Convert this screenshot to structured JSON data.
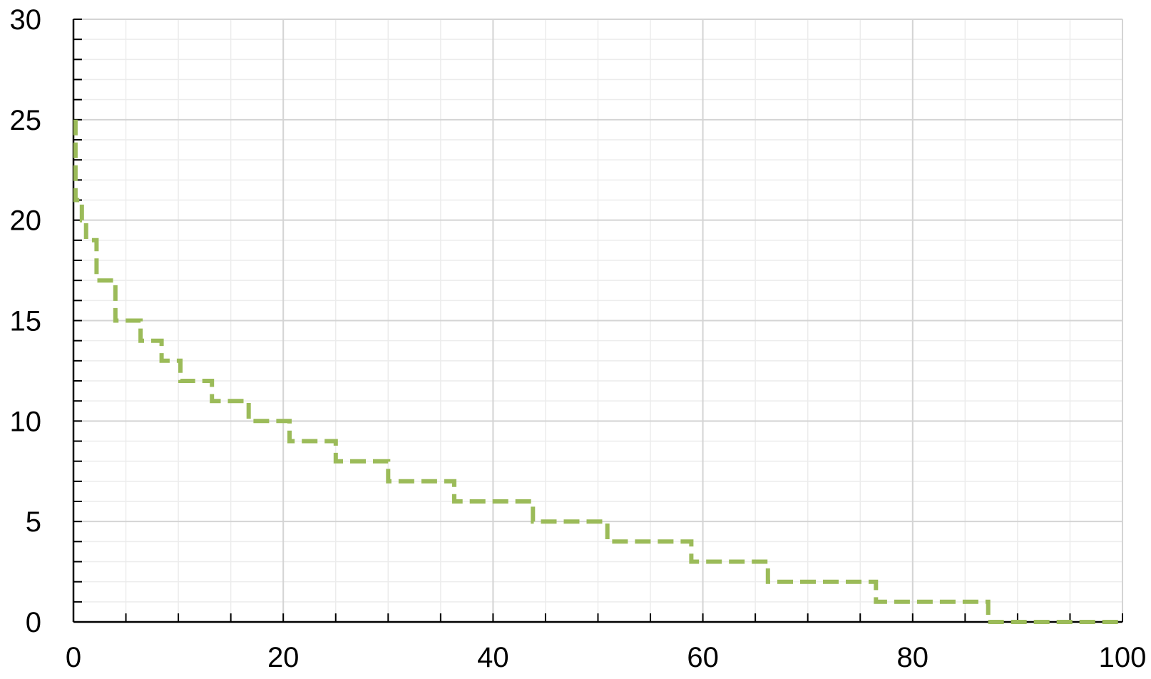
{
  "chart_data": {
    "type": "line",
    "title": "",
    "xlabel": "",
    "ylabel": "",
    "xlim": [
      0,
      100
    ],
    "ylim": [
      0,
      30
    ],
    "x_ticks": [
      0,
      20,
      40,
      60,
      80,
      100
    ],
    "x_tick_labels": [
      "0",
      "20",
      "40",
      "60",
      "80",
      "100"
    ],
    "x_minor_step": 5,
    "y_ticks": [
      0,
      5,
      10,
      15,
      20,
      25,
      30
    ],
    "y_tick_labels": [
      "0",
      "5",
      "10",
      "15",
      "20",
      "25",
      "30"
    ],
    "y_minor_step": 1,
    "grid": true,
    "legend": "none",
    "series": [
      {
        "style": "step",
        "line_style": "dashed",
        "color": "#9bbb59",
        "points": [
          [
            0.2,
            25
          ],
          [
            0.2,
            21
          ],
          [
            0.8,
            21
          ],
          [
            0.8,
            20
          ],
          [
            1.2,
            20
          ],
          [
            1.2,
            19
          ],
          [
            2.2,
            19
          ],
          [
            2.2,
            17
          ],
          [
            4.0,
            17
          ],
          [
            4.0,
            15
          ],
          [
            6.4,
            15
          ],
          [
            6.4,
            14
          ],
          [
            8.4,
            14
          ],
          [
            8.4,
            13
          ],
          [
            10.2,
            13
          ],
          [
            10.2,
            12
          ],
          [
            13.2,
            12
          ],
          [
            13.2,
            11
          ],
          [
            16.7,
            11
          ],
          [
            16.7,
            10
          ],
          [
            20.6,
            10
          ],
          [
            20.6,
            9
          ],
          [
            25.0,
            9
          ],
          [
            25.0,
            8
          ],
          [
            30.0,
            8
          ],
          [
            30.0,
            7
          ],
          [
            36.3,
            7
          ],
          [
            36.3,
            6
          ],
          [
            43.8,
            6
          ],
          [
            43.8,
            5
          ],
          [
            50.9,
            5
          ],
          [
            50.9,
            4
          ],
          [
            58.9,
            4
          ],
          [
            58.9,
            3
          ],
          [
            66.2,
            3
          ],
          [
            66.2,
            2
          ],
          [
            76.5,
            2
          ],
          [
            76.5,
            1
          ],
          [
            87.2,
            1
          ],
          [
            87.2,
            0
          ],
          [
            100,
            0
          ]
        ]
      }
    ]
  }
}
